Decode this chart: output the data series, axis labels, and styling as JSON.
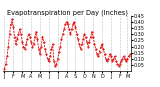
{
  "title": "Evapotranspiration per Day (Inches)",
  "line_color": "#dd0000",
  "bg_color": "#ffffff",
  "grid_color": "#888888",
  "y_values": [
    0.02,
    0.06,
    0.12,
    0.2,
    0.3,
    0.38,
    0.42,
    0.36,
    0.28,
    0.22,
    0.26,
    0.3,
    0.34,
    0.3,
    0.24,
    0.2,
    0.18,
    0.22,
    0.26,
    0.3,
    0.28,
    0.24,
    0.2,
    0.22,
    0.28,
    0.32,
    0.26,
    0.18,
    0.14,
    0.2,
    0.28,
    0.24,
    0.18,
    0.14,
    0.1,
    0.08,
    0.12,
    0.18,
    0.22,
    0.08,
    0.04,
    0.06,
    0.1,
    0.16,
    0.2,
    0.26,
    0.3,
    0.34,
    0.38,
    0.4,
    0.38,
    0.34,
    0.3,
    0.34,
    0.38,
    0.4,
    0.36,
    0.3,
    0.26,
    0.22,
    0.18,
    0.22,
    0.26,
    0.3,
    0.28,
    0.24,
    0.2,
    0.24,
    0.28,
    0.32,
    0.28,
    0.22,
    0.18,
    0.14,
    0.12,
    0.16,
    0.2,
    0.22,
    0.18,
    0.14,
    0.1,
    0.08,
    0.1,
    0.14,
    0.12,
    0.08,
    0.1,
    0.12,
    0.08,
    0.06,
    0.04,
    0.06,
    0.08,
    0.1,
    0.12,
    0.1,
    0.08,
    0.1,
    0.12,
    0.14
  ],
  "x_tick_positions": [
    0,
    7,
    14,
    21,
    28,
    35,
    42,
    49,
    56,
    63,
    70,
    77,
    84,
    91,
    97
  ],
  "x_tick_labels": [
    "J",
    "F",
    "M",
    "A",
    "M",
    "J",
    "J",
    "A",
    "S",
    "O",
    "N",
    "D",
    "J",
    "F",
    "M"
  ],
  "ylim": [
    0.0,
    0.45
  ],
  "ytick_vals": [
    0.05,
    0.1,
    0.15,
    0.2,
    0.25,
    0.3,
    0.35,
    0.4,
    0.45
  ],
  "title_fontsize": 4.8,
  "tick_fontsize": 3.5,
  "figsize": [
    1.6,
    0.87
  ],
  "dpi": 100
}
